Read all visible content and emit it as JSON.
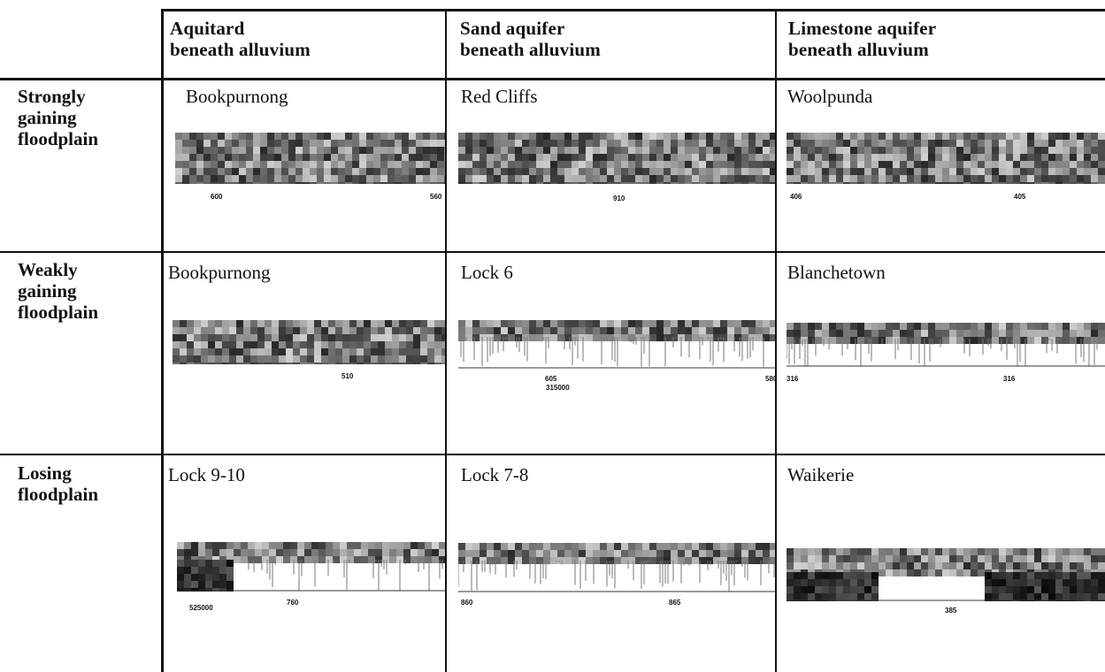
{
  "columns": [
    {
      "line1": "Aquitard",
      "line2": "beneath alluvium"
    },
    {
      "line1": "Sand aquifer",
      "line2": "beneath alluvium"
    },
    {
      "line1": "Limestone aquifer",
      "line2": "beneath alluvium"
    }
  ],
  "rows": [
    {
      "label": [
        "Strongly",
        "gaining",
        "floodplain"
      ],
      "cells": [
        {
          "site": "Bookpurnong",
          "ticks": [
            "600",
            "560"
          ]
        },
        {
          "site": "Red Cliffs",
          "ticks": [
            "910"
          ]
        },
        {
          "site": "Woolpunda",
          "ticks": [
            "406",
            "405"
          ]
        }
      ]
    },
    {
      "label": [
        "Weakly",
        "gaining",
        "floodplain"
      ],
      "cells": [
        {
          "site": "Bookpurnong",
          "ticks": [
            "510"
          ]
        },
        {
          "site": "Lock 6",
          "ticks": [
            "605",
            "315000",
            "580"
          ]
        },
        {
          "site": "Blanchetown",
          "ticks": [
            "316",
            "316"
          ]
        }
      ]
    },
    {
      "label": [
        "Losing",
        "floodplain"
      ],
      "cells": [
        {
          "site": "Lock 9-10",
          "ticks": [
            "525000",
            "760"
          ]
        },
        {
          "site": "Lock 7-8",
          "ticks": [
            "860",
            "865"
          ]
        },
        {
          "site": "Waikerie",
          "ticks": [
            "385"
          ]
        }
      ]
    }
  ]
}
